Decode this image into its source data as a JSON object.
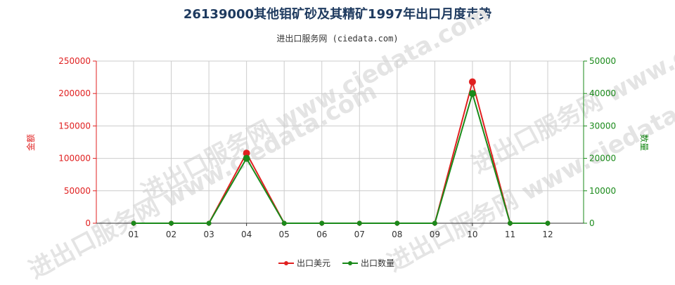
{
  "chart_data": {
    "type": "line",
    "title": "26139000其他钼矿砂及其精矿1997年出口月度走势",
    "subtitle": "进出口服务网 (ciedata.com)",
    "categories": [
      "01",
      "02",
      "03",
      "04",
      "05",
      "06",
      "07",
      "08",
      "09",
      "10",
      "11",
      "12"
    ],
    "y_left_label": "金额",
    "y_right_label": "数量",
    "y_left_range": [
      0,
      250000
    ],
    "y_right_range": [
      0,
      50000
    ],
    "y_left_ticks": [
      "0",
      "50000",
      "100000",
      "150000",
      "200000",
      "250000"
    ],
    "y_right_ticks": [
      "0",
      "10000",
      "20000",
      "30000",
      "40000",
      "50000"
    ],
    "grid": true,
    "legend_position": "bottom-center",
    "series": [
      {
        "name": "出口美元",
        "axis": "left",
        "color": "#e02020",
        "values": [
          0,
          0,
          0,
          108000,
          0,
          0,
          0,
          0,
          0,
          218000,
          0,
          0
        ]
      },
      {
        "name": "出口数量",
        "axis": "right",
        "color": "#1a8a1a",
        "values": [
          0,
          0,
          0,
          20000,
          0,
          0,
          0,
          0,
          0,
          40000,
          0,
          0
        ]
      }
    ],
    "left_axis_color": "#e02020",
    "right_axis_color": "#1a8a1a",
    "watermark": "进出口服务网 www.ciedata.com"
  }
}
